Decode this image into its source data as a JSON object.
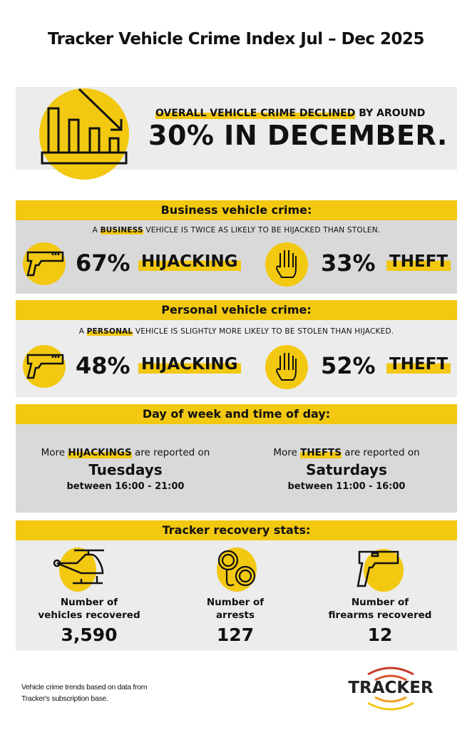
{
  "title": "Tracker Vehicle Crime Index Jul – Dec 2025",
  "headline": {
    "highlight": "OVERALL VEHICLE CRIME DECLINED",
    "rest": " BY AROUND",
    "big": "30% IN DECEMBER.",
    "icon": "declining-bar-chart-icon"
  },
  "business": {
    "header": "Business vehicle crime:",
    "line_pre": "A ",
    "line_hl": "BUSINESS",
    "line_post": " VEHICLE IS TWICE AS LIKELY TO BE HIJACKED THAN STOLEN.",
    "hijack_pct": "67%",
    "hijack_label": "HIJACKING",
    "theft_pct": "33%",
    "theft_label": "THEFT"
  },
  "personal": {
    "header": "Personal vehicle crime:",
    "line_pre": "A ",
    "line_hl": "PERSONAL",
    "line_post": " VEHICLE IS SLIGHTLY MORE LIKELY TO BE STOLEN THAN HIJACKED.",
    "hijack_pct": "48%",
    "hijack_label": "HIJACKING",
    "theft_pct": "52%",
    "theft_label": "THEFT"
  },
  "day": {
    "header": "Day of week and time of day:",
    "left": {
      "pre": "More ",
      "hl": "HIJACKINGS",
      "post": " are reported on",
      "day": "Tuesdays",
      "time": "between 16:00 - 21:00"
    },
    "right": {
      "pre": "More ",
      "hl": "THEFTS",
      "post": " are reported on",
      "day": "Saturdays",
      "time": "between 11:00 - 16:00"
    }
  },
  "recovery": {
    "header": "Tracker recovery stats:",
    "stats": [
      {
        "l1": "Number of",
        "l2": "vehicles recovered",
        "value": "3,590",
        "icon": "helicopter-icon"
      },
      {
        "l1": "Number of",
        "l2": "arrests",
        "value": "127",
        "icon": "handcuffs-icon"
      },
      {
        "l1": "Number of",
        "l2": "firearms recovered",
        "value": "12",
        "icon": "pistol-icon"
      }
    ]
  },
  "footer": {
    "line1": "Vehicle crime trends based on data from",
    "line2": "Tracker's subscription base.",
    "logo": "TRACKER"
  },
  "colors": {
    "yellow": "#f2c811",
    "gray_light": "#ececec",
    "gray_dark": "#d9d9d9",
    "logo_red": "#c8392b"
  }
}
